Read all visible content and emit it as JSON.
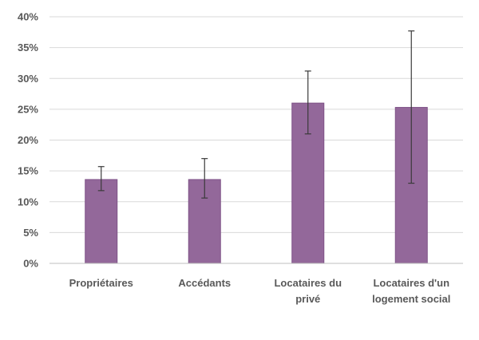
{
  "chart_data": {
    "type": "bar",
    "title": "",
    "xlabel": "",
    "ylabel": "",
    "categories": [
      [
        "Propriétaires"
      ],
      [
        "Accédants"
      ],
      [
        "Locataires du",
        "privé"
      ],
      [
        "Locataires d'un",
        "logement social"
      ]
    ],
    "values": [
      13.6,
      13.6,
      26.0,
      25.3
    ],
    "error_low": [
      11.8,
      10.6,
      21.0,
      13.0
    ],
    "error_high": [
      15.7,
      17.0,
      31.2,
      37.7
    ],
    "ylim": [
      0,
      40
    ],
    "yticks": [
      0,
      5,
      10,
      15,
      20,
      25,
      30,
      35,
      40
    ],
    "ytick_labels": [
      "0%",
      "5%",
      "10%",
      "15%",
      "20%",
      "25%",
      "30%",
      "35%",
      "40%"
    ],
    "grid": true,
    "bar_color": "#93689a",
    "bar_edge_color": "#7f5287"
  }
}
